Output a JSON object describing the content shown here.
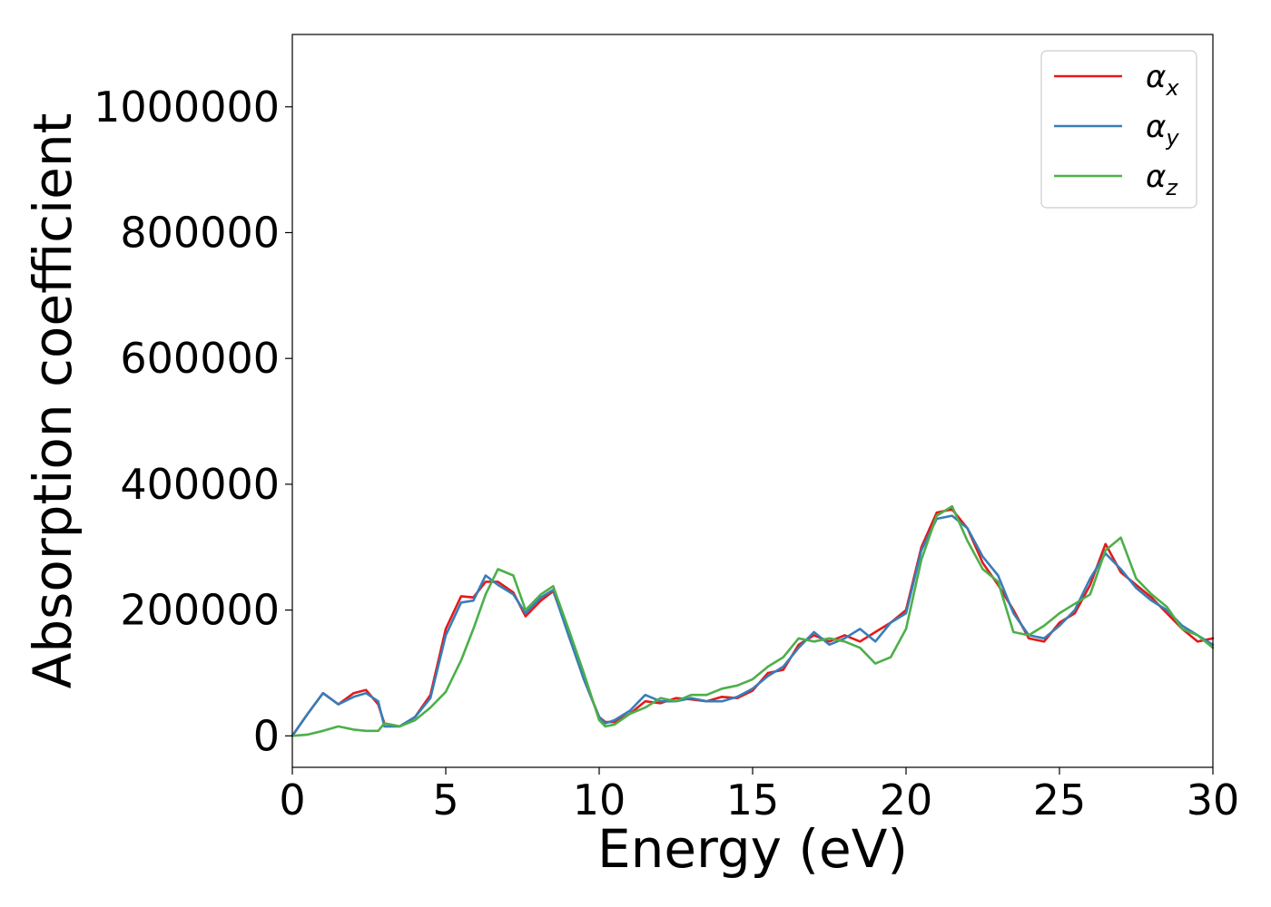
{
  "chart_data": {
    "type": "line",
    "xlabel": "Energy (eV)",
    "ylabel": "Absorption coefficient",
    "xlim": [
      0,
      30
    ],
    "ylim": [
      -50000,
      1115000
    ],
    "xticks": [
      "0",
      "5",
      "10",
      "15",
      "20",
      "25",
      "30"
    ],
    "yticks": [
      "0",
      "200000",
      "400000",
      "600000",
      "800000",
      "1000000"
    ],
    "grid": false,
    "legend_position": "top-right",
    "series": [
      {
        "name": "α_x",
        "legend_base": "α",
        "legend_sub": "x",
        "color": "#e41a1c",
        "x": [
          0,
          0.5,
          1,
          1.5,
          2,
          2.4,
          2.8,
          3,
          3.5,
          4,
          4.5,
          5,
          5.5,
          5.9,
          6.3,
          6.7,
          7.2,
          7.6,
          8.1,
          8.5,
          9,
          9.5,
          10,
          10.2,
          10.5,
          11,
          11.5,
          12,
          12.5,
          13,
          13.5,
          14,
          14.5,
          15,
          15.5,
          16,
          16.5,
          17,
          17.5,
          18,
          18.5,
          19,
          19.5,
          20,
          20.5,
          21,
          21.5,
          22,
          22.5,
          23,
          23.5,
          24,
          24.5,
          25,
          25.5,
          26,
          26.5,
          27,
          27.5,
          28,
          28.5,
          29,
          29.5,
          30
        ],
        "y": [
          0,
          35000,
          68000,
          50000,
          68000,
          73000,
          50000,
          20000,
          15000,
          30000,
          65000,
          170000,
          222000,
          220000,
          245000,
          245000,
          228000,
          190000,
          215000,
          230000,
          165000,
          90000,
          30000,
          22000,
          22000,
          35000,
          55000,
          52000,
          60000,
          58000,
          55000,
          62000,
          60000,
          72000,
          100000,
          105000,
          145000,
          160000,
          150000,
          160000,
          150000,
          165000,
          180000,
          200000,
          300000,
          355000,
          360000,
          330000,
          275000,
          240000,
          200000,
          155000,
          150000,
          180000,
          195000,
          240000,
          305000,
          260000,
          240000,
          220000,
          195000,
          170000,
          150000,
          155000
        ]
      },
      {
        "name": "α_y",
        "legend_base": "α",
        "legend_sub": "y",
        "color": "#377eb8",
        "x": [
          0,
          0.5,
          1,
          1.5,
          2,
          2.4,
          2.8,
          3,
          3.5,
          4,
          4.5,
          5,
          5.5,
          5.9,
          6.3,
          6.7,
          7.2,
          7.6,
          8.1,
          8.5,
          9,
          9.5,
          10,
          10.2,
          10.5,
          11,
          11.5,
          12,
          12.5,
          13,
          13.5,
          14,
          14.5,
          15,
          15.5,
          16,
          16.5,
          17,
          17.5,
          18,
          18.5,
          19,
          19.5,
          20,
          20.5,
          21,
          21.5,
          22,
          22.5,
          23,
          23.5,
          24,
          24.5,
          25,
          25.5,
          26,
          26.5,
          27,
          27.5,
          28,
          28.5,
          29,
          29.5,
          30
        ],
        "y": [
          0,
          35000,
          68000,
          50000,
          62000,
          68000,
          55000,
          15000,
          15000,
          30000,
          60000,
          160000,
          212000,
          215000,
          255000,
          240000,
          225000,
          195000,
          220000,
          232000,
          160000,
          90000,
          30000,
          20000,
          25000,
          40000,
          65000,
          55000,
          55000,
          60000,
          55000,
          55000,
          62000,
          75000,
          95000,
          110000,
          140000,
          165000,
          145000,
          155000,
          170000,
          150000,
          180000,
          195000,
          295000,
          345000,
          350000,
          330000,
          285000,
          255000,
          195000,
          160000,
          155000,
          175000,
          200000,
          250000,
          290000,
          265000,
          235000,
          215000,
          200000,
          175000,
          160000,
          145000
        ]
      },
      {
        "name": "α_z",
        "legend_base": "α",
        "legend_sub": "z",
        "color": "#4daf4a",
        "x": [
          0,
          0.5,
          1,
          1.5,
          2,
          2.4,
          2.8,
          3,
          3.5,
          4,
          4.5,
          5,
          5.5,
          5.9,
          6.3,
          6.7,
          7.2,
          7.6,
          8.1,
          8.5,
          9,
          9.5,
          10,
          10.2,
          10.5,
          11,
          11.5,
          12,
          12.5,
          13,
          13.5,
          14,
          14.5,
          15,
          15.5,
          16,
          16.5,
          17,
          17.5,
          18,
          18.5,
          19,
          19.5,
          20,
          20.5,
          21,
          21.5,
          22,
          22.5,
          23,
          23.5,
          24,
          24.5,
          25,
          25.5,
          26,
          26.5,
          27,
          27.5,
          28,
          28.5,
          29,
          29.5,
          30
        ],
        "y": [
          0,
          2000,
          8000,
          15000,
          10000,
          8000,
          8000,
          20000,
          15000,
          25000,
          45000,
          70000,
          120000,
          170000,
          225000,
          265000,
          255000,
          200000,
          225000,
          238000,
          170000,
          100000,
          25000,
          15000,
          18000,
          35000,
          45000,
          60000,
          55000,
          65000,
          65000,
          75000,
          80000,
          90000,
          110000,
          125000,
          155000,
          150000,
          155000,
          150000,
          140000,
          115000,
          125000,
          170000,
          280000,
          350000,
          365000,
          310000,
          265000,
          245000,
          165000,
          160000,
          175000,
          195000,
          210000,
          225000,
          295000,
          315000,
          250000,
          225000,
          205000,
          170000,
          160000,
          140000
        ]
      }
    ]
  }
}
